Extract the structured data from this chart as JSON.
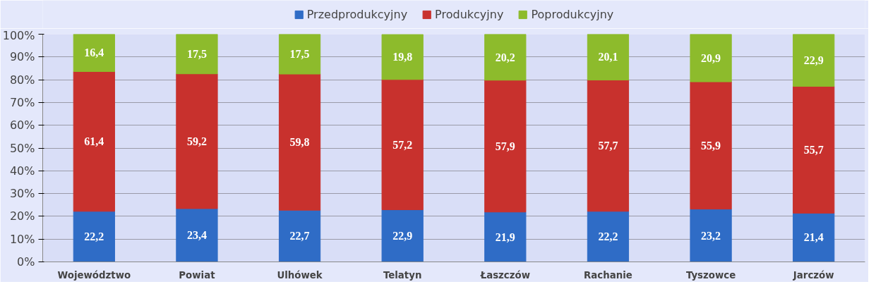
{
  "chart_data": {
    "type": "bar",
    "stacked": true,
    "categories": [
      "Województwo",
      "Powiat",
      "Ulhówek",
      "Telatyn",
      "Łaszczów",
      "Rachanie",
      "Tyszowce",
      "Jarczów"
    ],
    "series": [
      {
        "name": "Przedprodukcyjny",
        "color": "#2f6cc6",
        "values": [
          22.2,
          23.4,
          22.7,
          22.9,
          21.9,
          22.2,
          23.2,
          21.4
        ]
      },
      {
        "name": "Produkcyjny",
        "color": "#c8312d",
        "values": [
          61.4,
          59.2,
          59.8,
          57.2,
          57.9,
          57.7,
          55.9,
          55.7
        ]
      },
      {
        "name": "Poprodukcyjny",
        "color": "#8dbb2c",
        "values": [
          16.4,
          17.5,
          17.5,
          19.8,
          20.2,
          20.1,
          20.9,
          22.9
        ]
      }
    ],
    "value_labels": [
      [
        "22,2",
        "23,4",
        "22,7",
        "22,9",
        "21,9",
        "22,2",
        "23,2",
        "21,4"
      ],
      [
        "61,4",
        "59,2",
        "59,8",
        "57,2",
        "57,9",
        "57,7",
        "55,9",
        "55,7"
      ],
      [
        "16,4",
        "17,5",
        "17,5",
        "19,8",
        "20,2",
        "20,1",
        "20,9",
        "22,9"
      ]
    ],
    "ylim": [
      0,
      100
    ],
    "yticks": [
      {
        "value": 0,
        "label": "0%"
      },
      {
        "value": 10,
        "label": "10%"
      },
      {
        "value": 20,
        "label": "20%"
      },
      {
        "value": 30,
        "label": "30%"
      },
      {
        "value": 40,
        "label": "40%"
      },
      {
        "value": 50,
        "label": "50%"
      },
      {
        "value": 60,
        "label": "60%"
      },
      {
        "value": 70,
        "label": "70%"
      },
      {
        "value": 80,
        "label": "80%"
      },
      {
        "value": 90,
        "label": "90%"
      },
      {
        "value": 100,
        "label": "100%"
      }
    ],
    "grid": "y",
    "legend": "top"
  }
}
